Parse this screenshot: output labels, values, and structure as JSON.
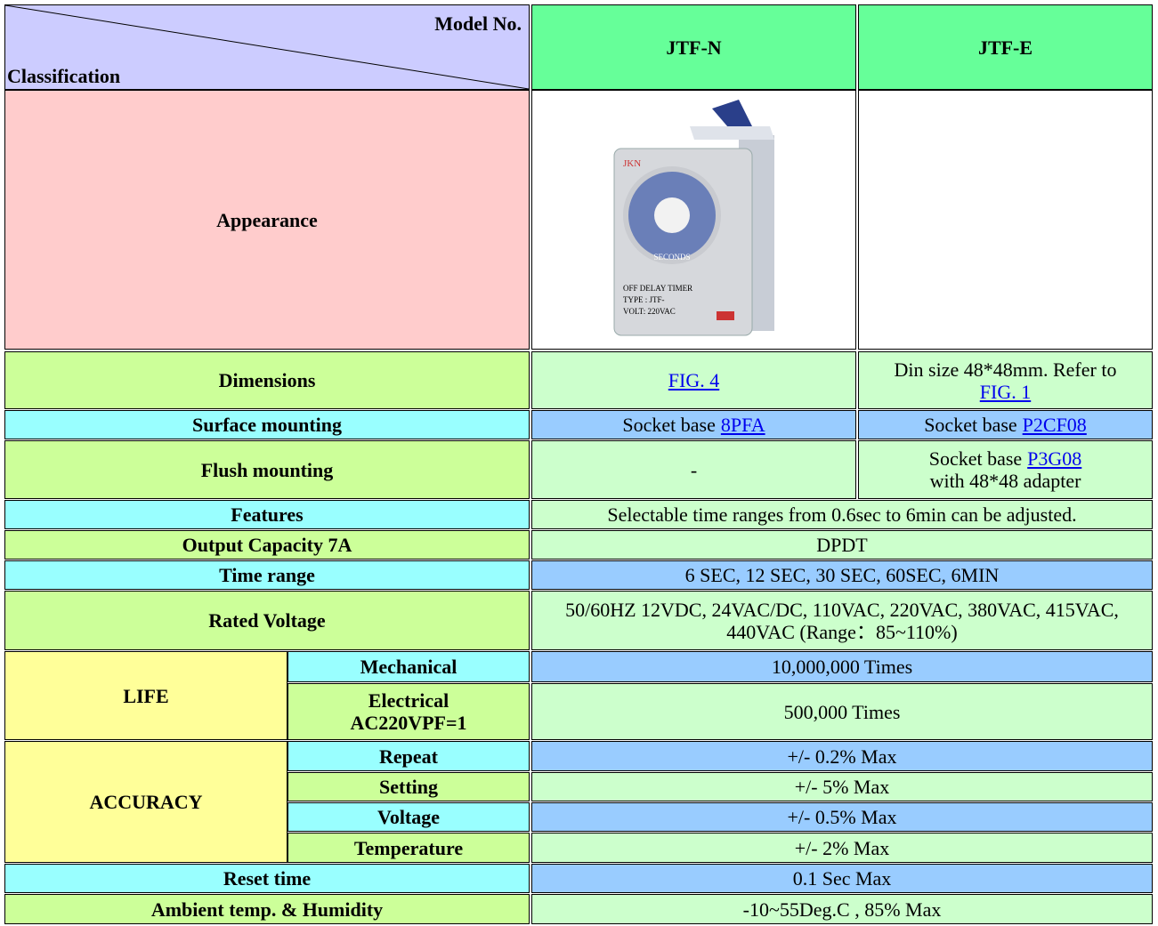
{
  "header": {
    "model_no": "Model No.",
    "classification": "Classification",
    "models": [
      "JTF-N",
      "JTF-E"
    ]
  },
  "rows": [
    {
      "label": "Appearance"
    },
    {
      "label": "Dimensions",
      "jtf_n": {
        "link": "FIG. 4"
      },
      "jtf_e": {
        "text": "Din size 48*48mm. Refer to",
        "link": "FIG. 1"
      }
    },
    {
      "label": "Surface mounting",
      "jtf_n": {
        "text": "Socket base",
        "link": "8PFA"
      },
      "jtf_e": {
        "text": "Socket base",
        "link": "P2CF08"
      }
    },
    {
      "label": "Flush mounting",
      "jtf_n": {
        "text": "-"
      },
      "jtf_e": {
        "text": "Socket base",
        "link": "P3G08",
        "note": "with 48*48 adapter"
      }
    },
    {
      "label": "Features",
      "value": "Selectable time ranges from 0.6sec to 6min can be adjusted."
    },
    {
      "label": "Output Capacity 7A",
      "value": "DPDT"
    },
    {
      "label": "Time range",
      "value": "6 SEC, 12 SEC, 30 SEC, 60SEC, 6MIN"
    },
    {
      "label": "Rated Voltage",
      "value": "50/60HZ 12VDC, 24VAC/DC, 110VAC, 220VAC, 380VAC, 415VAC, 440VAC (Range：85~110%)"
    },
    {
      "label": "LIFE",
      "items": [
        {
          "label": [
            "Mechanical"
          ],
          "value": "10,000,000 Times"
        },
        {
          "label": [
            "Electrical",
            "AC220VPF=1"
          ],
          "value": "500,000 Times"
        }
      ]
    },
    {
      "label": "ACCURACY",
      "items": [
        {
          "label": [
            "Repeat"
          ],
          "value": "+/- 0.2% Max"
        },
        {
          "label": [
            "Setting"
          ],
          "value": "+/- 5% Max"
        },
        {
          "label": [
            "Voltage"
          ],
          "value": "+/- 0.5% Max"
        },
        {
          "label": [
            "Temperature"
          ],
          "value": "+/- 2% Max"
        }
      ]
    },
    {
      "label": "Reset time",
      "value": "0.1 Sec Max"
    },
    {
      "label": "Ambient temp. & Humidity",
      "value": "-10~55Deg.C , 85% Max"
    }
  ]
}
